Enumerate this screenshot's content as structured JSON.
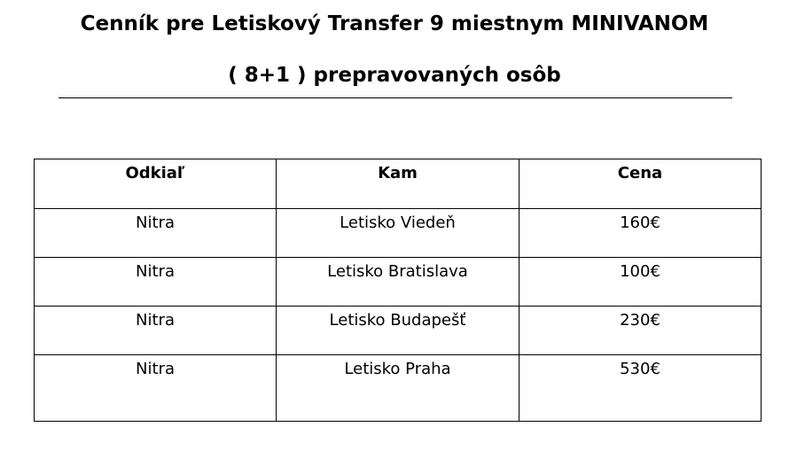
{
  "header": {
    "title": "Cenník pre Letiskový Transfer 9 miestnym MINIVANOM",
    "subtitle": "( 8+1 ) prepravovaných osôb"
  },
  "table": {
    "columns": [
      "Odkiaľ",
      "Kam",
      "Cena"
    ],
    "rows": [
      [
        "Nitra",
        "Letisko Viedeň",
        "160€"
      ],
      [
        "Nitra",
        "Letisko Bratislava",
        "100€"
      ],
      [
        "Nitra",
        "Letisko Budapešť",
        "230€"
      ],
      [
        "Nitra",
        "Letisko Praha",
        "530€"
      ]
    ]
  }
}
